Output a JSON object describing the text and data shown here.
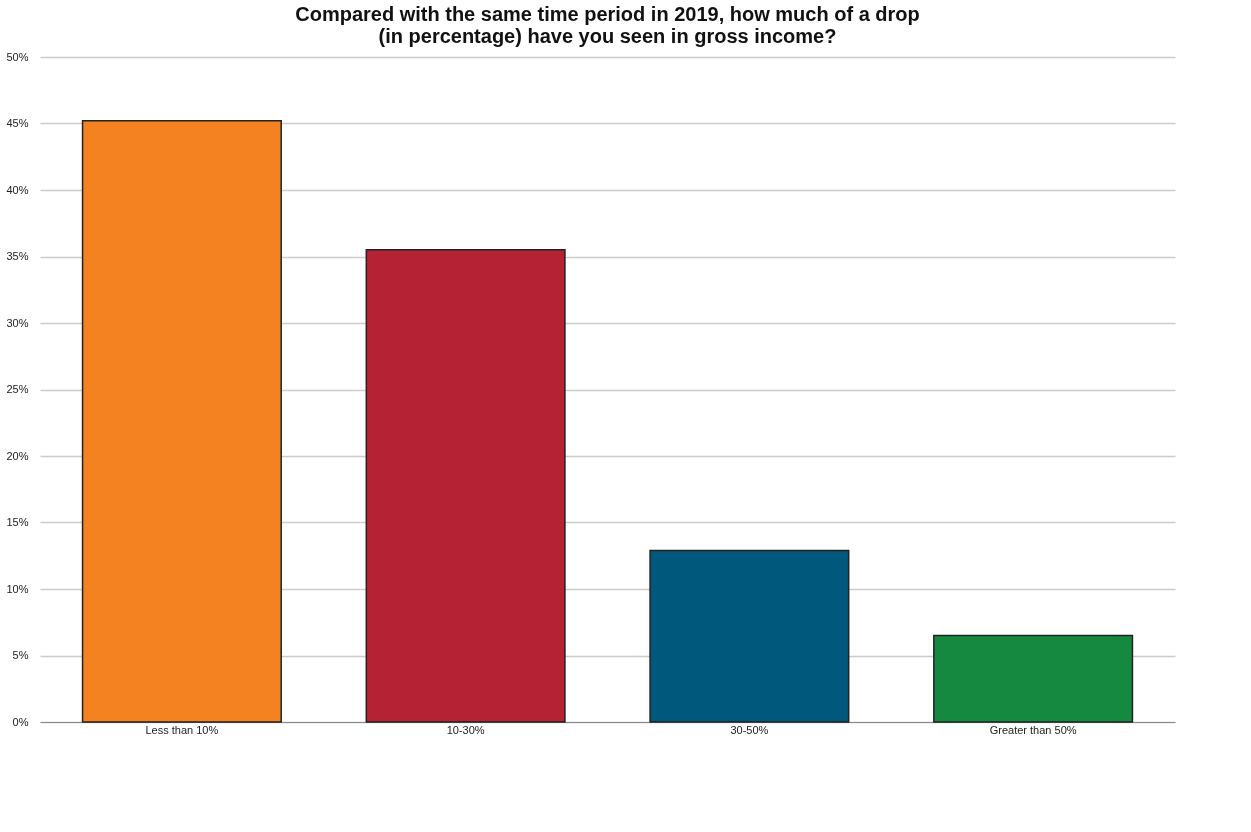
{
  "chart_data": {
    "type": "bar",
    "title": [
      "Compared with the same time period in 2019, how much of a drop",
      "(in percentage) have you seen in gross income?"
    ],
    "categories": [
      "Less than 10%",
      "10-30%",
      "30-50%",
      "Greater than 50%"
    ],
    "values": [
      45.2,
      35.5,
      12.9,
      6.5
    ],
    "colors": [
      "#f58220",
      "#b52233",
      "#00587c",
      "#168940"
    ],
    "ylim": [
      0,
      50
    ],
    "yticks": [
      {
        "value": 0,
        "label": "0%"
      },
      {
        "value": 5,
        "label": "5%"
      },
      {
        "value": 10,
        "label": "10%"
      },
      {
        "value": 15,
        "label": "15%"
      },
      {
        "value": 20,
        "label": "20%"
      },
      {
        "value": 25,
        "label": "25%"
      },
      {
        "value": 30,
        "label": "30%"
      },
      {
        "value": 35,
        "label": "35%"
      },
      {
        "value": 40,
        "label": "40%"
      },
      {
        "value": 45,
        "label": "45%"
      },
      {
        "value": 50,
        "label": "50%"
      }
    ],
    "grid": "y"
  }
}
